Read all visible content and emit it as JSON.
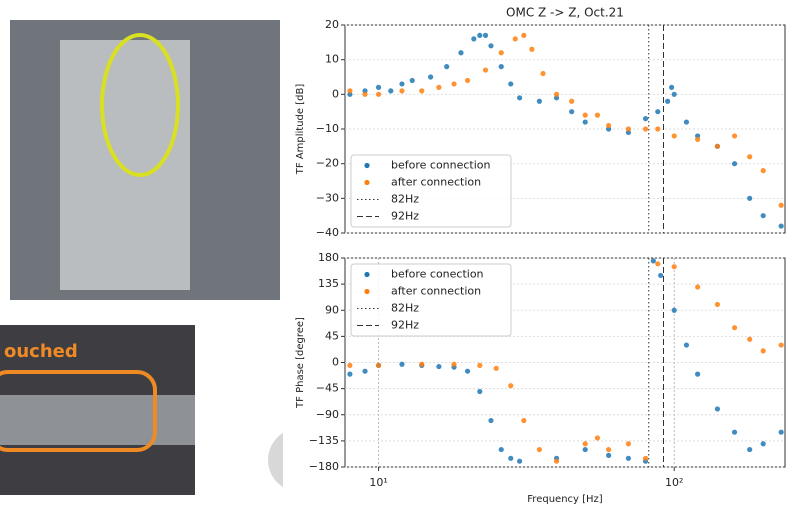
{
  "photo_caption": "ouched",
  "chart_data": [
    {
      "type": "scatter",
      "title": "OMC Z -> Z, Oct.21",
      "ylabel": "TF Amplitude [dB]",
      "xscale": "log",
      "xlim": [
        7.7,
        237
      ],
      "ylim": [
        -40,
        20
      ],
      "yticks": [
        {
          "value": -40,
          "label": "−40"
        },
        {
          "value": -30,
          "label": "−30"
        },
        {
          "value": -20,
          "label": "−20"
        },
        {
          "value": -10,
          "label": "−10"
        },
        0,
        10,
        20
      ],
      "grid": true,
      "legend": "lower left",
      "vlines": [
        {
          "x": 82,
          "name": "82Hz",
          "style": "dotted"
        },
        {
          "x": 92,
          "name": "92Hz",
          "style": "dashed"
        }
      ],
      "series": [
        {
          "name": "before connection",
          "color": "#1f77b4",
          "x": [
            8,
            9,
            10,
            11,
            12,
            13,
            15,
            17,
            19,
            21,
            22,
            23,
            24,
            26,
            28,
            30,
            35,
            40,
            45,
            50,
            60,
            70,
            80,
            88,
            95,
            98,
            100,
            110,
            120,
            140,
            160,
            180,
            200,
            230
          ],
          "values": [
            0,
            1,
            2,
            1,
            3,
            4,
            5,
            8,
            12,
            16,
            17,
            17,
            14,
            8,
            3,
            -1,
            -2,
            -1,
            -5,
            -8,
            -10,
            -11,
            -7,
            -5,
            -2,
            2,
            0,
            -8,
            -12,
            -15,
            -20,
            -30,
            -35,
            -38
          ]
        },
        {
          "name": "after connection",
          "color": "#ff7f0e",
          "x": [
            8,
            9,
            10,
            12,
            14,
            16,
            18,
            20,
            23,
            26,
            29,
            31,
            33,
            36,
            40,
            45,
            50,
            55,
            60,
            70,
            80,
            88,
            100,
            120,
            140,
            160,
            180,
            200,
            230
          ],
          "values": [
            1,
            0,
            0,
            1,
            1,
            2,
            3,
            4,
            7,
            12,
            16,
            17,
            13,
            6,
            0,
            -2,
            -6,
            -6,
            -9,
            -10,
            -10,
            -10,
            -12,
            -13,
            -15,
            -12,
            -18,
            -22,
            -32
          ]
        }
      ]
    },
    {
      "type": "scatter",
      "ylabel": "TF Phase [degree]",
      "xlabel": "Frequency [Hz]",
      "xscale": "log",
      "xlim": [
        7.7,
        237
      ],
      "ylim": [
        -180,
        180
      ],
      "xticks": [
        {
          "value": 10,
          "label": "10¹"
        },
        {
          "value": 100,
          "label": "10²"
        }
      ],
      "yticks": [
        {
          "value": -180,
          "label": "−180"
        },
        {
          "value": -135,
          "label": "−135"
        },
        {
          "value": -90,
          "label": "−90"
        },
        {
          "value": -45,
          "label": "−45"
        },
        0,
        45,
        90,
        135,
        180
      ],
      "grid": true,
      "legend": "upper left",
      "vlines": [
        {
          "x": 82,
          "name": "82Hz",
          "style": "dotted"
        },
        {
          "x": 92,
          "name": "92Hz",
          "style": "dashed"
        }
      ],
      "series": [
        {
          "name": "before conection",
          "color": "#1f77b4",
          "x": [
            8,
            9,
            10,
            12,
            14,
            16,
            18,
            20,
            22,
            24,
            26,
            28,
            30,
            40,
            50,
            60,
            70,
            80,
            85,
            90,
            100,
            110,
            120,
            140,
            160,
            180,
            200,
            230
          ],
          "values": [
            -20,
            -15,
            -5,
            -3,
            -5,
            -7,
            -8,
            -15,
            -50,
            -100,
            -150,
            -165,
            -170,
            -165,
            -150,
            -160,
            -165,
            -170,
            175,
            150,
            90,
            30,
            -20,
            -80,
            -120,
            -150,
            -140,
            -120
          ]
        },
        {
          "name": "after connection",
          "color": "#ff7f0e",
          "x": [
            8,
            10,
            14,
            18,
            22,
            25,
            28,
            31,
            35,
            40,
            50,
            55,
            60,
            70,
            80,
            88,
            100,
            120,
            140,
            160,
            180,
            200,
            230
          ],
          "values": [
            -5,
            -5,
            -3,
            -3,
            -5,
            -10,
            -40,
            -100,
            -150,
            -170,
            -140,
            -130,
            -150,
            -140,
            -165,
            170,
            165,
            130,
            100,
            60,
            40,
            20,
            30
          ]
        }
      ]
    }
  ]
}
